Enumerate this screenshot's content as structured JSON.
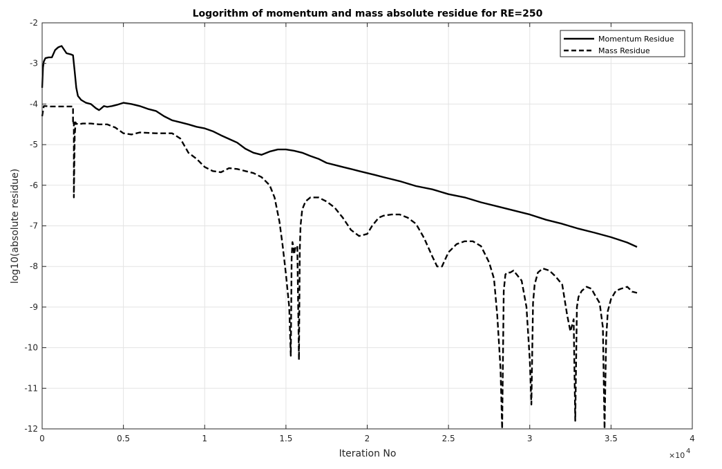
{
  "chart_data": {
    "type": "line",
    "title": "Logorithm of momentum and mass absolute residue for RE=250",
    "xlabel": "Iteration No",
    "ylabel": "log10(absolute residue)",
    "x_exponent_label": "×10",
    "x_exponent_power": "4",
    "xlim": [
      0,
      4
    ],
    "ylim": [
      -12,
      -2
    ],
    "xticks": [
      "0",
      "0.5",
      "1",
      "1.5",
      "2",
      "2.5",
      "3",
      "3.5",
      "4"
    ],
    "yticks": [
      "-2",
      "-3",
      "-4",
      "-5",
      "-6",
      "-7",
      "-8",
      "-9",
      "-10",
      "-11",
      "-12"
    ],
    "grid": true,
    "legend_position": "top-right",
    "series": [
      {
        "name": "Momentum Residue",
        "style": "solid",
        "color": "#000000",
        "x": [
          0,
          0.005,
          0.01,
          0.02,
          0.04,
          0.06,
          0.08,
          0.1,
          0.12,
          0.15,
          0.18,
          0.19,
          0.2,
          0.21,
          0.22,
          0.24,
          0.27,
          0.3,
          0.33,
          0.35,
          0.36,
          0.38,
          0.4,
          0.43,
          0.46,
          0.5,
          0.55,
          0.6,
          0.65,
          0.7,
          0.75,
          0.8,
          0.85,
          0.9,
          0.95,
          1.0,
          1.05,
          1.1,
          1.15,
          1.2,
          1.25,
          1.3,
          1.35,
          1.4,
          1.45,
          1.5,
          1.55,
          1.6,
          1.65,
          1.7,
          1.75,
          1.8,
          1.85,
          1.9,
          1.95,
          2.0,
          2.05,
          2.1,
          2.15,
          2.2,
          2.3,
          2.4,
          2.5,
          2.6,
          2.7,
          2.8,
          2.9,
          3.0,
          3.1,
          3.2,
          3.3,
          3.4,
          3.5,
          3.6,
          3.66
        ],
        "y": [
          -3.6,
          -3.1,
          -2.95,
          -2.87,
          -2.85,
          -2.85,
          -2.67,
          -2.6,
          -2.57,
          -2.75,
          -2.78,
          -2.8,
          -3.2,
          -3.6,
          -3.8,
          -3.9,
          -3.97,
          -4.0,
          -4.1,
          -4.15,
          -4.12,
          -4.05,
          -4.07,
          -4.05,
          -4.02,
          -3.97,
          -4.0,
          -4.05,
          -4.12,
          -4.17,
          -4.3,
          -4.4,
          -4.45,
          -4.5,
          -4.56,
          -4.6,
          -4.67,
          -4.77,
          -4.86,
          -4.95,
          -5.1,
          -5.2,
          -5.25,
          -5.17,
          -5.12,
          -5.12,
          -5.15,
          -5.2,
          -5.28,
          -5.35,
          -5.45,
          -5.5,
          -5.55,
          -5.6,
          -5.65,
          -5.7,
          -5.75,
          -5.8,
          -5.85,
          -5.9,
          -6.02,
          -6.1,
          -6.22,
          -6.3,
          -6.42,
          -6.52,
          -6.62,
          -6.72,
          -6.85,
          -6.95,
          -7.07,
          -7.17,
          -7.28,
          -7.41,
          -7.52
        ]
      },
      {
        "name": "Mass Residue",
        "style": "dashed",
        "color": "#000000",
        "x": [
          0,
          0.01,
          0.02,
          0.05,
          0.1,
          0.15,
          0.18,
          0.19,
          0.19,
          0.195,
          0.195,
          0.2,
          0.205,
          0.205,
          0.21,
          0.22,
          0.25,
          0.3,
          0.35,
          0.4,
          0.45,
          0.5,
          0.55,
          0.6,
          0.7,
          0.8,
          0.85,
          0.9,
          0.95,
          1.0,
          1.05,
          1.1,
          1.15,
          1.2,
          1.25,
          1.3,
          1.35,
          1.4,
          1.43,
          1.46,
          1.48,
          1.5,
          1.52,
          1.53,
          1.535,
          1.54,
          1.545,
          1.55,
          1.56,
          1.57,
          1.58,
          1.585,
          1.59,
          1.6,
          1.62,
          1.65,
          1.7,
          1.75,
          1.8,
          1.85,
          1.9,
          1.95,
          2.0,
          2.03,
          2.07,
          2.1,
          2.15,
          2.2,
          2.25,
          2.3,
          2.35,
          2.4,
          2.43,
          2.46,
          2.5,
          2.55,
          2.6,
          2.65,
          2.7,
          2.75,
          2.78,
          2.8,
          2.82,
          2.83,
          2.84,
          2.85,
          2.86,
          2.88,
          2.9,
          2.95,
          2.98,
          3.0,
          3.01,
          3.02,
          3.03,
          3.05,
          3.08,
          3.12,
          3.16,
          3.2,
          3.23,
          3.25,
          3.27,
          3.28,
          3.29,
          3.3,
          3.32,
          3.35,
          3.38,
          3.4,
          3.43,
          3.45,
          3.46,
          3.47,
          3.48,
          3.5,
          3.53,
          3.56,
          3.6,
          3.63,
          3.66
        ],
        "y": [
          -4.3,
          -4.05,
          -4.05,
          -4.06,
          -4.06,
          -4.06,
          -4.06,
          -4.06,
          -4.5,
          -4.45,
          -6.3,
          -4.8,
          -4.5,
          -4.45,
          -4.48,
          -4.5,
          -4.48,
          -4.48,
          -4.5,
          -4.5,
          -4.58,
          -4.72,
          -4.75,
          -4.7,
          -4.72,
          -4.72,
          -4.85,
          -5.2,
          -5.35,
          -5.55,
          -5.65,
          -5.68,
          -5.58,
          -5.6,
          -5.65,
          -5.7,
          -5.8,
          -6.0,
          -6.3,
          -6.9,
          -7.5,
          -8.2,
          -9.0,
          -10.2,
          -7.8,
          -7.4,
          -7.5,
          -7.7,
          -7.5,
          -7.5,
          -10.3,
          -7.6,
          -7.0,
          -6.6,
          -6.4,
          -6.3,
          -6.3,
          -6.4,
          -6.55,
          -6.8,
          -7.1,
          -7.25,
          -7.2,
          -7.0,
          -6.8,
          -6.75,
          -6.72,
          -6.72,
          -6.8,
          -6.95,
          -7.3,
          -7.75,
          -8.0,
          -8.0,
          -7.65,
          -7.45,
          -7.38,
          -7.38,
          -7.5,
          -7.9,
          -8.3,
          -9.2,
          -10.5,
          -12.0,
          -8.6,
          -8.2,
          -8.15,
          -8.15,
          -8.1,
          -8.35,
          -9.0,
          -10.3,
          -11.4,
          -8.9,
          -8.45,
          -8.15,
          -8.05,
          -8.1,
          -8.25,
          -8.45,
          -9.2,
          -9.6,
          -9.3,
          -11.8,
          -9.0,
          -8.75,
          -8.6,
          -8.5,
          -8.55,
          -8.7,
          -8.9,
          -9.5,
          -12.0,
          -9.8,
          -9.1,
          -8.8,
          -8.6,
          -8.55,
          -8.5,
          -8.62,
          -8.65
        ]
      }
    ]
  }
}
